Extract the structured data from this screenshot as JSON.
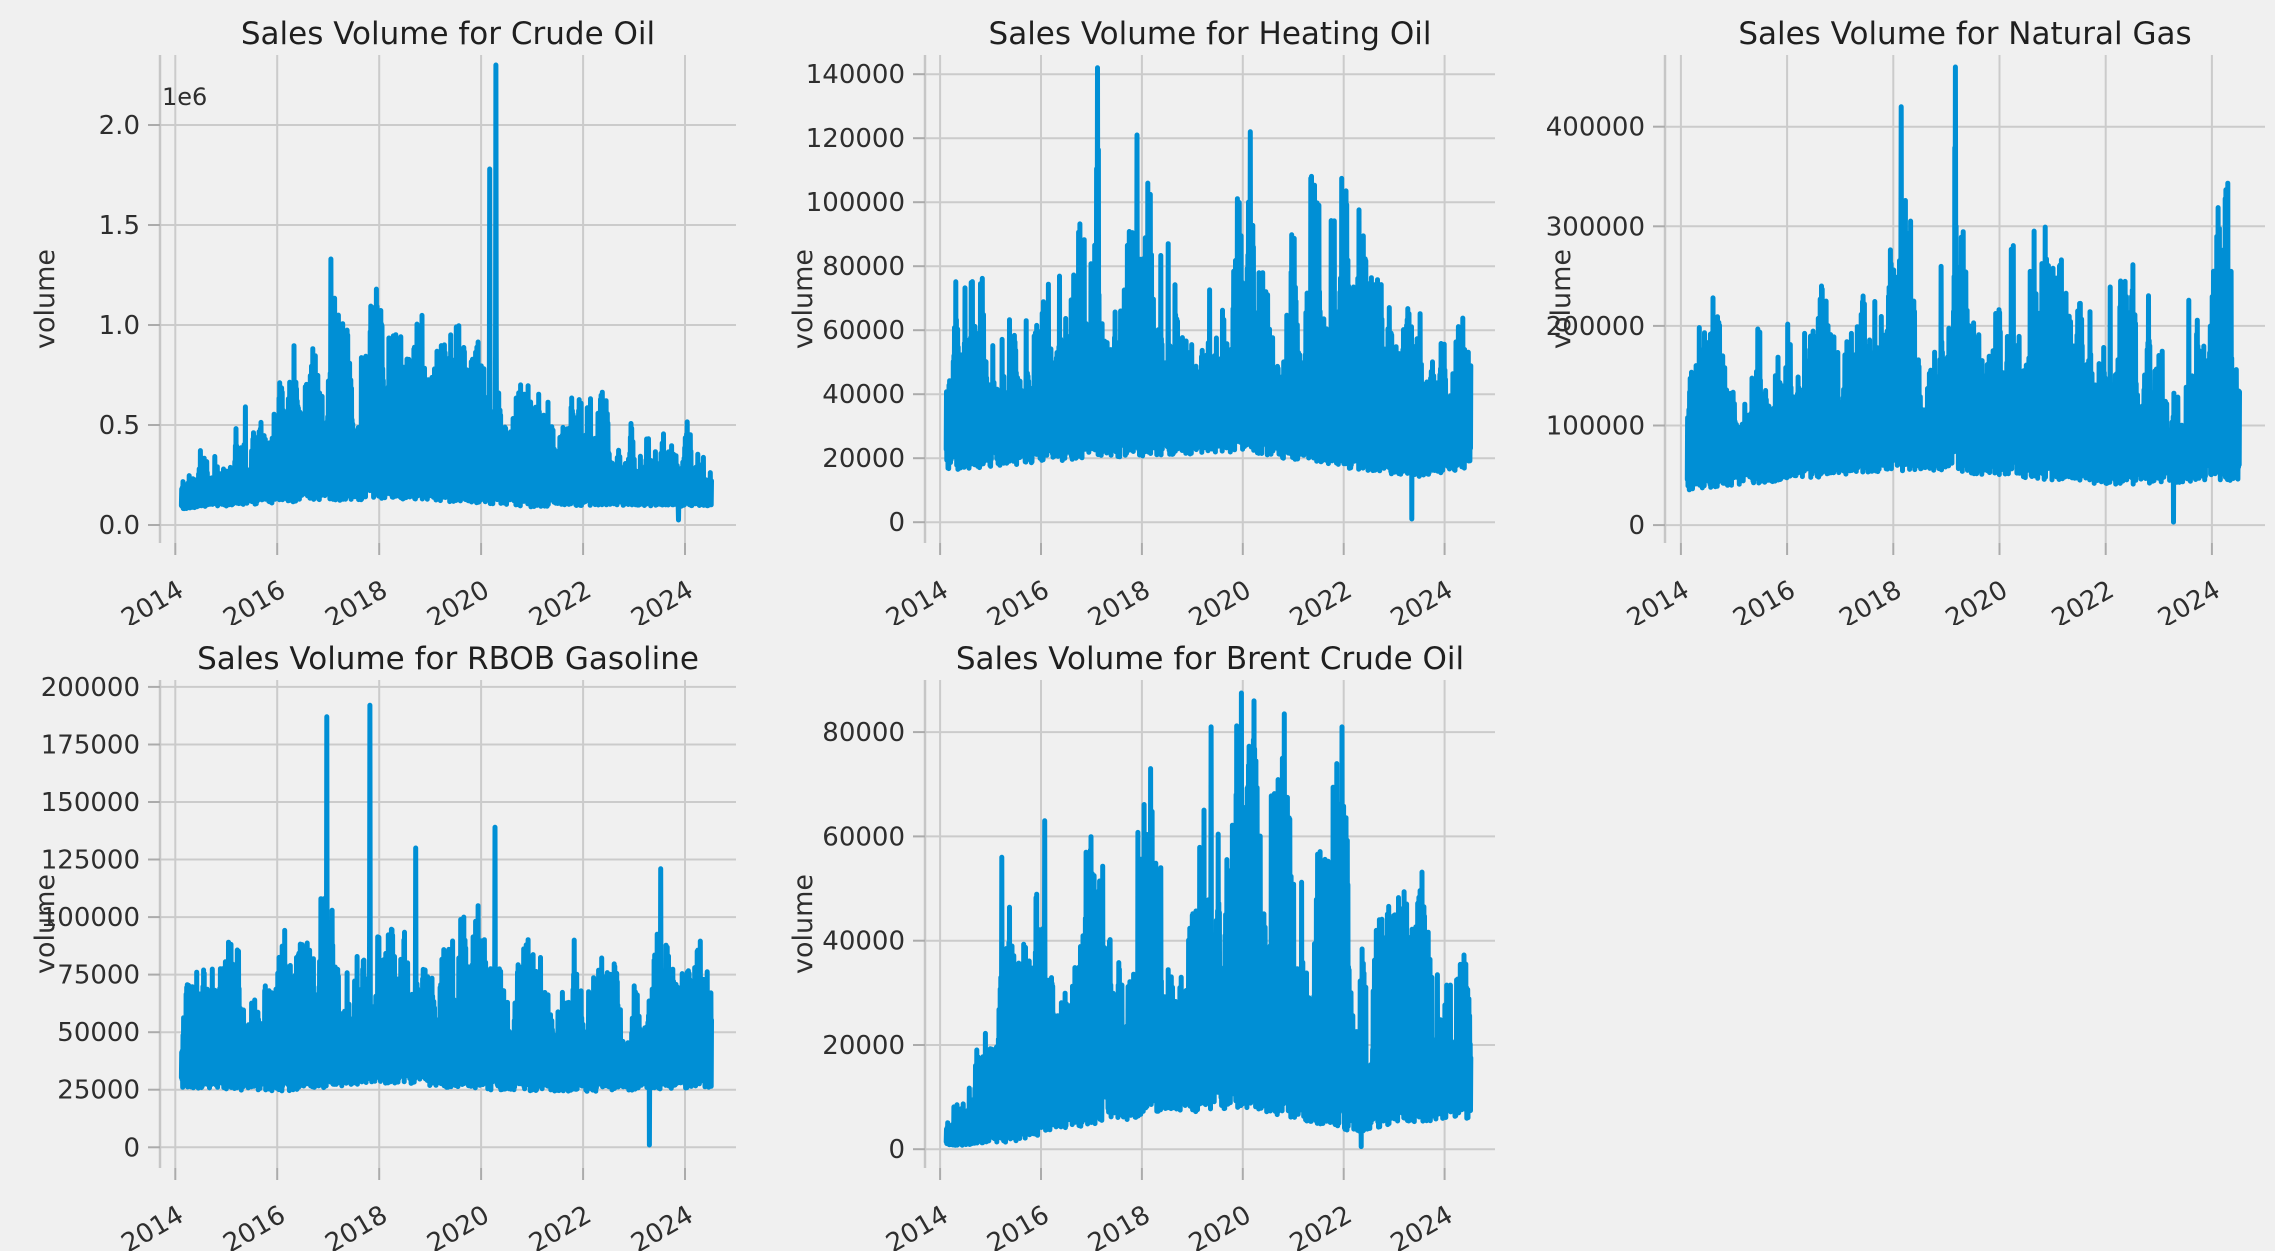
{
  "figure": {
    "background": "#f0f0f0",
    "grid_color": "#cbcbcb",
    "spine_color": "#c6c6c6",
    "tick_mark_color": "#ababab",
    "title_color": "#1f1f1f",
    "tick_label_color": "#2e2e2e",
    "axis_label_color": "#2e2e2e",
    "series_color": "#008fd5"
  },
  "chart_data": [
    {
      "type": "line",
      "title": "Sales Volume for Crude Oil",
      "ylabel": "volume",
      "offset_label": "1e6",
      "seed": 101,
      "points": 1700,
      "grid": true,
      "legend": "none",
      "xlim": [
        2013.7,
        2025.0
      ],
      "x_range": [
        2014.12,
        2024.52
      ],
      "ylim": [
        -90000,
        2350000
      ],
      "xtick_values": [
        2014,
        2016,
        2018,
        2020,
        2022,
        2024
      ],
      "xtick_labels": [
        "2014",
        "2016",
        "2018",
        "2020",
        "2022",
        "2024"
      ],
      "ytick_values": [
        0,
        500000,
        1000000,
        1500000,
        2000000
      ],
      "ytick_labels": [
        "0.0",
        "0.5",
        "1.0",
        "1.5",
        "2.0"
      ],
      "upper_envelope": [
        [
          2014.12,
          300000
        ],
        [
          2014.5,
          420000
        ],
        [
          2014.8,
          560000
        ],
        [
          2015.1,
          640000
        ],
        [
          2015.35,
          760000
        ],
        [
          2015.6,
          700000
        ],
        [
          2015.9,
          820000
        ],
        [
          2016.1,
          950000
        ],
        [
          2016.4,
          880000
        ],
        [
          2016.7,
          1000000
        ],
        [
          2016.95,
          1100000
        ],
        [
          2017.05,
          1250000
        ],
        [
          2017.3,
          1080000
        ],
        [
          2017.6,
          1180000
        ],
        [
          2017.85,
          1260000
        ],
        [
          2018.1,
          1150000
        ],
        [
          2018.4,
          1020000
        ],
        [
          2018.7,
          1120000
        ],
        [
          2019.0,
          1060000
        ],
        [
          2019.3,
          930000
        ],
        [
          2019.6,
          1020000
        ],
        [
          2019.9,
          880000
        ],
        [
          2020.1,
          1050000
        ],
        [
          2020.3,
          1200000
        ],
        [
          2020.6,
          820000
        ],
        [
          2020.9,
          700000
        ],
        [
          2021.2,
          640000
        ],
        [
          2021.5,
          810000
        ],
        [
          2021.8,
          660000
        ],
        [
          2022.1,
          900000
        ],
        [
          2022.35,
          820000
        ],
        [
          2022.6,
          600000
        ],
        [
          2022.9,
          500000
        ],
        [
          2023.2,
          560000
        ],
        [
          2023.5,
          480000
        ],
        [
          2023.8,
          520000
        ],
        [
          2024.1,
          560000
        ],
        [
          2024.35,
          600000
        ],
        [
          2024.52,
          440000
        ]
      ],
      "lower_envelope": [
        [
          2014.12,
          80000
        ],
        [
          2016.0,
          110000
        ],
        [
          2018.0,
          130000
        ],
        [
          2020.0,
          110000
        ],
        [
          2021.0,
          90000
        ],
        [
          2022.5,
          100000
        ],
        [
          2024.52,
          90000
        ]
      ],
      "spikes": [
        [
          2020.29,
          2300000
        ],
        [
          2020.17,
          1780000
        ],
        [
          2017.05,
          1330000
        ],
        [
          2023.87,
          25000
        ]
      ]
    },
    {
      "type": "line",
      "title": "Sales Volume for Heating Oil",
      "ylabel": "volume",
      "seed": 202,
      "points": 1700,
      "grid": true,
      "legend": "none",
      "xlim": [
        2013.7,
        2025.0
      ],
      "x_range": [
        2014.12,
        2024.52
      ],
      "ylim": [
        -6500,
        146000
      ],
      "xtick_values": [
        2014,
        2016,
        2018,
        2020,
        2022,
        2024
      ],
      "xtick_labels": [
        "2014",
        "2016",
        "2018",
        "2020",
        "2022",
        "2024"
      ],
      "ytick_values": [
        0,
        20000,
        40000,
        60000,
        80000,
        100000,
        120000,
        140000
      ],
      "ytick_labels": [
        "0",
        "20000",
        "40000",
        "60000",
        "80000",
        "100000",
        "120000",
        "140000"
      ],
      "upper_envelope": [
        [
          2014.12,
          86000
        ],
        [
          2014.7,
          78000
        ],
        [
          2015.0,
          88000
        ],
        [
          2015.3,
          76000
        ],
        [
          2015.6,
          95000
        ],
        [
          2015.9,
          88000
        ],
        [
          2016.2,
          96000
        ],
        [
          2016.5,
          84000
        ],
        [
          2016.8,
          95000
        ],
        [
          2017.1,
          120000
        ],
        [
          2017.4,
          108000
        ],
        [
          2017.7,
          96000
        ],
        [
          2017.95,
          118000
        ],
        [
          2018.2,
          100000
        ],
        [
          2018.5,
          108000
        ],
        [
          2018.8,
          110000
        ],
        [
          2019.1,
          104000
        ],
        [
          2019.4,
          110000
        ],
        [
          2019.7,
          99000
        ],
        [
          2020.0,
          115000
        ],
        [
          2020.2,
          120000
        ],
        [
          2020.5,
          112000
        ],
        [
          2020.8,
          92000
        ],
        [
          2021.1,
          95000
        ],
        [
          2021.4,
          110000
        ],
        [
          2021.7,
          90000
        ],
        [
          2021.95,
          110000
        ],
        [
          2022.2,
          104000
        ],
        [
          2022.5,
          88000
        ],
        [
          2022.8,
          72000
        ],
        [
          2023.1,
          70000
        ],
        [
          2023.4,
          68000
        ],
        [
          2023.7,
          64000
        ],
        [
          2024.0,
          78000
        ],
        [
          2024.3,
          90000
        ],
        [
          2024.52,
          85000
        ]
      ],
      "lower_envelope": [
        [
          2014.12,
          16000
        ],
        [
          2017.0,
          20000
        ],
        [
          2020.0,
          22000
        ],
        [
          2022.0,
          17000
        ],
        [
          2023.5,
          14000
        ],
        [
          2024.52,
          17000
        ]
      ],
      "spikes": [
        [
          2017.12,
          142000
        ],
        [
          2017.9,
          121000
        ],
        [
          2020.15,
          122000
        ],
        [
          2023.35,
          1000
        ]
      ]
    },
    {
      "type": "line",
      "title": "Sales Volume for Natural Gas",
      "ylabel": "volume",
      "seed": 303,
      "points": 1700,
      "grid": true,
      "legend": "none",
      "xlim": [
        2013.7,
        2025.0
      ],
      "x_range": [
        2014.12,
        2024.52
      ],
      "ylim": [
        -18000,
        472000
      ],
      "xtick_values": [
        2014,
        2016,
        2018,
        2020,
        2022,
        2024
      ],
      "xtick_labels": [
        "2014",
        "2016",
        "2018",
        "2020",
        "2022",
        "2024"
      ],
      "ytick_values": [
        0,
        100000,
        200000,
        300000,
        400000
      ],
      "ytick_labels": [
        "0",
        "100000",
        "200000",
        "300000",
        "400000"
      ],
      "upper_envelope": [
        [
          2014.12,
          170000
        ],
        [
          2014.6,
          230000
        ],
        [
          2014.9,
          160000
        ],
        [
          2015.2,
          210000
        ],
        [
          2015.5,
          250000
        ],
        [
          2015.8,
          195000
        ],
        [
          2016.1,
          225000
        ],
        [
          2016.4,
          265000
        ],
        [
          2016.7,
          240000
        ],
        [
          2017.0,
          265000
        ],
        [
          2017.3,
          280000
        ],
        [
          2017.6,
          255000
        ],
        [
          2017.9,
          300000
        ],
        [
          2018.15,
          400000
        ],
        [
          2018.45,
          300000
        ],
        [
          2018.75,
          270000
        ],
        [
          2019.0,
          290000
        ],
        [
          2019.17,
          440000
        ],
        [
          2019.45,
          240000
        ],
        [
          2019.75,
          290000
        ],
        [
          2020.05,
          310000
        ],
        [
          2020.3,
          340000
        ],
        [
          2020.55,
          380000
        ],
        [
          2020.85,
          300000
        ],
        [
          2021.15,
          275000
        ],
        [
          2021.5,
          245000
        ],
        [
          2021.85,
          235000
        ],
        [
          2022.15,
          270000
        ],
        [
          2022.45,
          345000
        ],
        [
          2022.75,
          250000
        ],
        [
          2023.05,
          225000
        ],
        [
          2023.4,
          195000
        ],
        [
          2023.75,
          260000
        ],
        [
          2024.05,
          310000
        ],
        [
          2024.35,
          350000
        ],
        [
          2024.52,
          235000
        ]
      ],
      "lower_envelope": [
        [
          2014.12,
          35000
        ],
        [
          2016.0,
          45000
        ],
        [
          2018.0,
          55000
        ],
        [
          2020.0,
          50000
        ],
        [
          2022.0,
          40000
        ],
        [
          2024.52,
          45000
        ]
      ],
      "spikes": [
        [
          2019.17,
          460000
        ],
        [
          2018.15,
          420000
        ],
        [
          2023.28,
          3000
        ]
      ]
    },
    {
      "type": "line",
      "title": "Sales Volume for RBOB Gasoline",
      "ylabel": "volume",
      "seed": 404,
      "points": 1700,
      "grid": true,
      "legend": "none",
      "xlim": [
        2013.7,
        2025.0
      ],
      "x_range": [
        2014.12,
        2024.52
      ],
      "ylim": [
        -9000,
        203000
      ],
      "xtick_values": [
        2014,
        2016,
        2018,
        2020,
        2022,
        2024
      ],
      "xtick_labels": [
        "2014",
        "2016",
        "2018",
        "2020",
        "2022",
        "2024"
      ],
      "ytick_values": [
        0,
        25000,
        50000,
        75000,
        100000,
        125000,
        150000,
        175000,
        200000
      ],
      "ytick_labels": [
        "0",
        "25000",
        "50000",
        "75000",
        "100000",
        "125000",
        "150000",
        "175000",
        "200000"
      ],
      "upper_envelope": [
        [
          2014.12,
          74000
        ],
        [
          2014.7,
          78000
        ],
        [
          2015.0,
          90000
        ],
        [
          2015.3,
          84000
        ],
        [
          2015.6,
          92000
        ],
        [
          2015.95,
          106000
        ],
        [
          2016.25,
          88000
        ],
        [
          2016.55,
          94000
        ],
        [
          2016.9,
          110000
        ],
        [
          2017.2,
          98000
        ],
        [
          2017.5,
          108000
        ],
        [
          2017.85,
          110000
        ],
        [
          2018.1,
          98000
        ],
        [
          2018.4,
          93000
        ],
        [
          2018.7,
          128000
        ],
        [
          2019.0,
          99000
        ],
        [
          2019.3,
          94000
        ],
        [
          2019.6,
          99000
        ],
        [
          2019.9,
          104000
        ],
        [
          2020.25,
          112000
        ],
        [
          2020.55,
          92000
        ],
        [
          2020.85,
          89000
        ],
        [
          2021.15,
          94000
        ],
        [
          2021.45,
          84000
        ],
        [
          2021.75,
          89000
        ],
        [
          2022.05,
          93000
        ],
        [
          2022.35,
          84000
        ],
        [
          2022.65,
          79000
        ],
        [
          2022.95,
          74000
        ],
        [
          2023.25,
          79000
        ],
        [
          2023.5,
          100000
        ],
        [
          2023.8,
          74000
        ],
        [
          2024.1,
          77000
        ],
        [
          2024.4,
          98000
        ],
        [
          2024.52,
          84000
        ]
      ],
      "lower_envelope": [
        [
          2014.12,
          26000
        ],
        [
          2016.0,
          24000
        ],
        [
          2018.0,
          28000
        ],
        [
          2020.0,
          25000
        ],
        [
          2022.0,
          24000
        ],
        [
          2024.52,
          26000
        ]
      ],
      "spikes": [
        [
          2016.97,
          187000
        ],
        [
          2017.82,
          192000
        ],
        [
          2020.27,
          139000
        ],
        [
          2018.72,
          130000
        ],
        [
          2023.52,
          121000
        ],
        [
          2023.3,
          1000
        ]
      ]
    },
    {
      "type": "line",
      "title": "Sales Volume for Brent Crude Oil",
      "ylabel": "volume",
      "seed": 505,
      "points": 1700,
      "grid": true,
      "legend": "none",
      "xlim": [
        2013.7,
        2025.0
      ],
      "x_range": [
        2014.12,
        2024.52
      ],
      "ylim": [
        -3600,
        90000
      ],
      "xtick_values": [
        2014,
        2016,
        2018,
        2020,
        2022,
        2024
      ],
      "xtick_labels": [
        "2014",
        "2016",
        "2018",
        "2020",
        "2022",
        "2024"
      ],
      "ytick_values": [
        0,
        20000,
        40000,
        60000,
        80000
      ],
      "ytick_labels": [
        "0",
        "20000",
        "40000",
        "60000",
        "80000"
      ],
      "upper_envelope": [
        [
          2014.12,
          11000
        ],
        [
          2014.6,
          16000
        ],
        [
          2014.85,
          22000
        ],
        [
          2015.05,
          34000
        ],
        [
          2015.2,
          52000
        ],
        [
          2015.45,
          44000
        ],
        [
          2015.7,
          40000
        ],
        [
          2016.05,
          60000
        ],
        [
          2016.35,
          48000
        ],
        [
          2016.65,
          54000
        ],
        [
          2016.95,
          60000
        ],
        [
          2017.25,
          68000
        ],
        [
          2017.55,
          58000
        ],
        [
          2017.85,
          63000
        ],
        [
          2018.15,
          71000
        ],
        [
          2018.45,
          60000
        ],
        [
          2018.75,
          58000
        ],
        [
          2019.05,
          64000
        ],
        [
          2019.35,
          78000
        ],
        [
          2019.65,
          72000
        ],
        [
          2019.95,
          84000
        ],
        [
          2020.2,
          83000
        ],
        [
          2020.5,
          68000
        ],
        [
          2020.8,
          81000
        ],
        [
          2021.1,
          63000
        ],
        [
          2021.4,
          65000
        ],
        [
          2021.7,
          70000
        ],
        [
          2021.95,
          78000
        ],
        [
          2022.2,
          58000
        ],
        [
          2022.5,
          44000
        ],
        [
          2022.8,
          49000
        ],
        [
          2023.1,
          53000
        ],
        [
          2023.4,
          49000
        ],
        [
          2023.7,
          60000
        ],
        [
          2024.0,
          53000
        ],
        [
          2024.3,
          50000
        ],
        [
          2024.52,
          48000
        ]
      ],
      "lower_envelope": [
        [
          2014.12,
          500
        ],
        [
          2015.5,
          1500
        ],
        [
          2016.5,
          4000
        ],
        [
          2018.0,
          6000
        ],
        [
          2020.0,
          8000
        ],
        [
          2021.0,
          6000
        ],
        [
          2022.3,
          3000
        ],
        [
          2023.0,
          5000
        ],
        [
          2024.52,
          6000
        ]
      ],
      "spikes": [
        [
          2019.97,
          87500
        ],
        [
          2020.22,
          86000
        ],
        [
          2015.22,
          56000
        ],
        [
          2016.07,
          63000
        ],
        [
          2018.17,
          73000
        ],
        [
          2019.37,
          81000
        ],
        [
          2020.82,
          83500
        ],
        [
          2021.97,
          81000
        ],
        [
          2022.35,
          500
        ]
      ]
    }
  ]
}
